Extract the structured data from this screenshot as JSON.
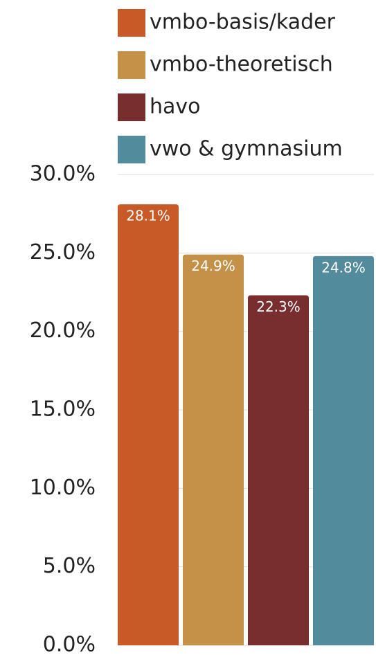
{
  "chart_data": {
    "type": "bar",
    "categories": [
      null
    ],
    "series": [
      {
        "name": "vmbo-basis/kader",
        "color": "#c85a27",
        "values": [
          28.1
        ],
        "value_labels": [
          "28.1%"
        ]
      },
      {
        "name": "vmbo-theoretisch",
        "color": "#c49148",
        "values": [
          24.9
        ],
        "value_labels": [
          "24.9%"
        ]
      },
      {
        "name": "havo",
        "color": "#782d2e",
        "values": [
          22.3
        ],
        "value_labels": [
          "22.3%"
        ]
      },
      {
        "name": "vwo & gymnasium",
        "color": "#528c9c",
        "values": [
          24.8
        ],
        "value_labels": [
          "24.8%"
        ]
      }
    ],
    "ylim": [
      0,
      30
    ],
    "yticks": [
      {
        "value": 0,
        "label": "0.0%"
      },
      {
        "value": 5,
        "label": "5.0%"
      },
      {
        "value": 10,
        "label": "10.0%"
      },
      {
        "value": 15,
        "label": "15.0%"
      },
      {
        "value": 20,
        "label": "20.0%"
      },
      {
        "value": 25,
        "label": "25.0%"
      },
      {
        "value": 30,
        "label": "30.0%"
      }
    ],
    "grid": true,
    "legend": "top"
  }
}
